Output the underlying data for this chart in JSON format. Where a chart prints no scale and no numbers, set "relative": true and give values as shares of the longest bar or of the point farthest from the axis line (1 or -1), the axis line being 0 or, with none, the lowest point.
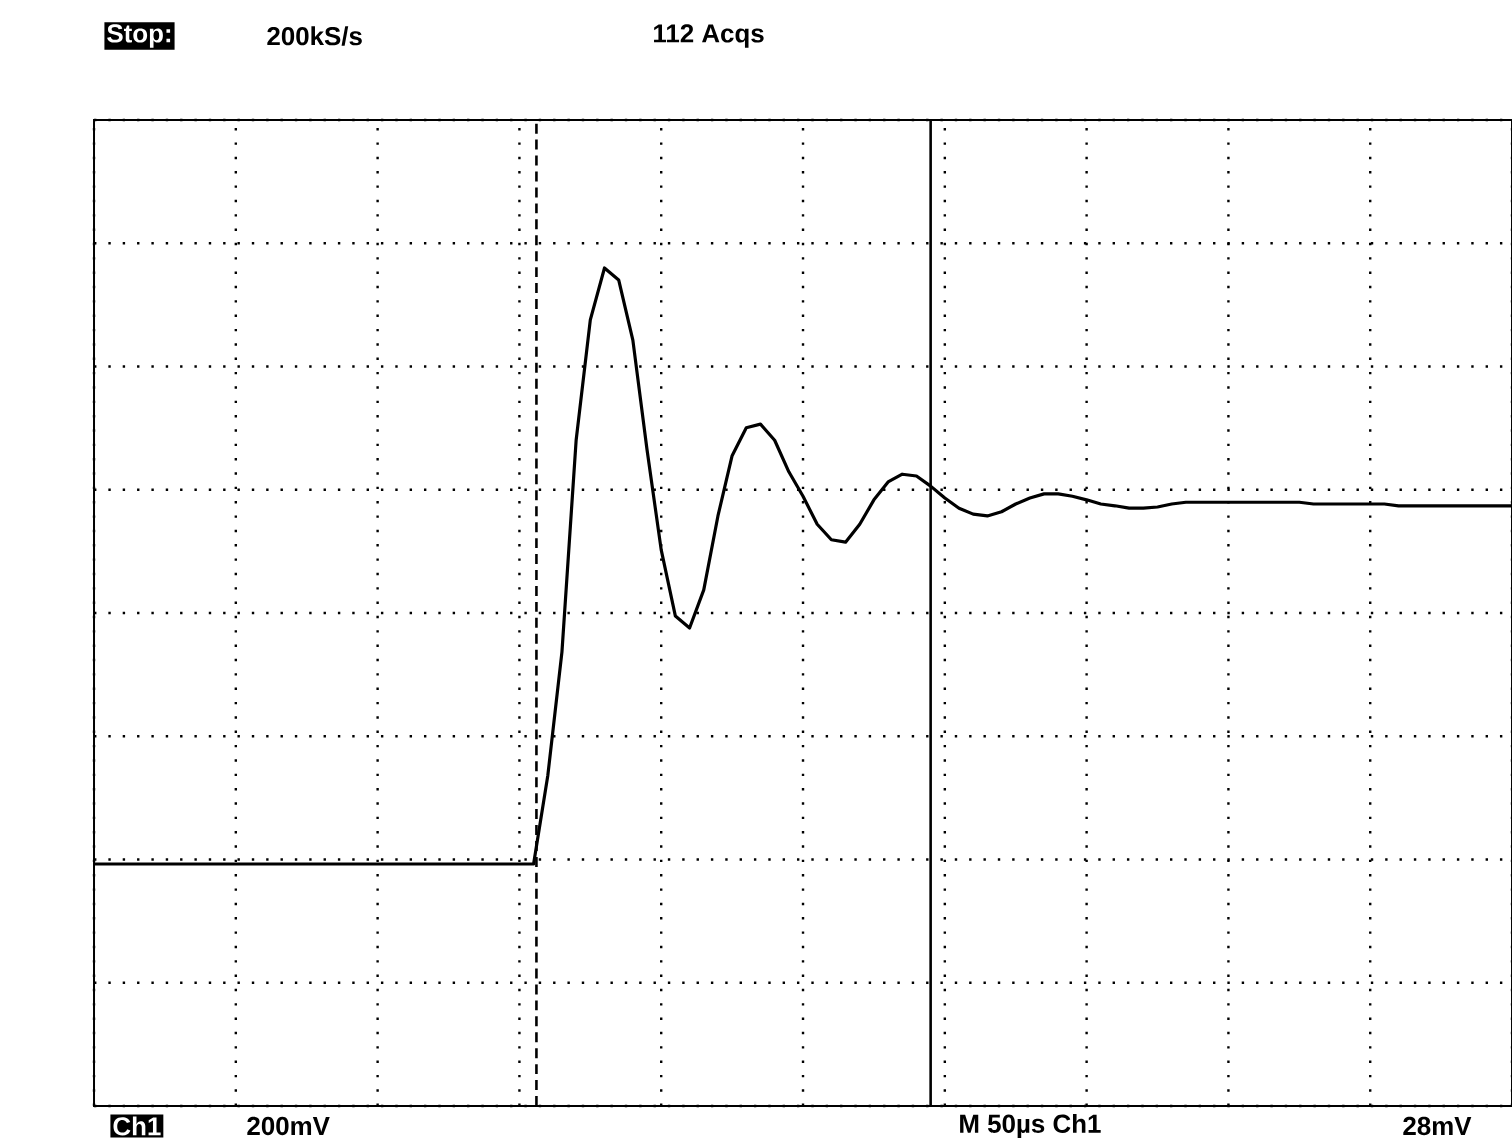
{
  "chart_data": {
    "type": "line",
    "relative": true,
    "grid": true,
    "marker": "none",
    "line_style": "solid",
    "categories": [
      null,
      null,
      null,
      null,
      null,
      null,
      null,
      null,
      null,
      null,
      null,
      null,
      null,
      null,
      null,
      null,
      null,
      null,
      null,
      null,
      null,
      null,
      null,
      null,
      null,
      null,
      null,
      null,
      null,
      null,
      null,
      null,
      null,
      null,
      null,
      null,
      null,
      null,
      null,
      null,
      null,
      null,
      null,
      null,
      null,
      null,
      null,
      null,
      null,
      null,
      null,
      null,
      null,
      null,
      null,
      null,
      null,
      null,
      null,
      null,
      null,
      null,
      null,
      null,
      null,
      null,
      null,
      null,
      null,
      null,
      null,
      null,
      null,
      null,
      null,
      null,
      null,
      null,
      null,
      null,
      null,
      null,
      null,
      null,
      null,
      null,
      null,
      null,
      null,
      null,
      null,
      null,
      null,
      null,
      null,
      null,
      null,
      null,
      null,
      null,
      null
    ],
    "series": [
      {
        "color": "#000000",
        "values": [
          0,
          0,
          0,
          0,
          0,
          0,
          0,
          0,
          0,
          0,
          0,
          0,
          0,
          0,
          0,
          0,
          0,
          0,
          0,
          0,
          0,
          0,
          0,
          0,
          0,
          0,
          0,
          0,
          0,
          0,
          0,
          0,
          0.148,
          0.356,
          0.711,
          0.913,
          1,
          0.98,
          0.879,
          0.695,
          0.527,
          0.416,
          0.396,
          0.46,
          0.584,
          0.685,
          0.732,
          0.738,
          0.711,
          0.658,
          0.617,
          0.57,
          0.544,
          0.54,
          0.57,
          0.611,
          0.641,
          0.654,
          0.651,
          0.634,
          0.614,
          0.597,
          0.587,
          0.584,
          0.591,
          0.604,
          0.614,
          0.621,
          0.621,
          0.617,
          0.611,
          0.604,
          0.601,
          0.597,
          0.597,
          0.599,
          0.604,
          0.607,
          0.607,
          0.607,
          0.607,
          0.607,
          0.607,
          0.607,
          0.607,
          0.607,
          0.604,
          0.604,
          0.604,
          0.604,
          0.604,
          0.604,
          0.601,
          0.601,
          0.601,
          0.601,
          0.601,
          0.601,
          0.601,
          0.601,
          0.601
        ]
      }
    ],
    "annotations": [
      "Stop:",
      "200kS/s",
      "112 Acqs",
      "Ch1",
      "200mV",
      "M 50µs Ch1",
      "28mV"
    ]
  }
}
